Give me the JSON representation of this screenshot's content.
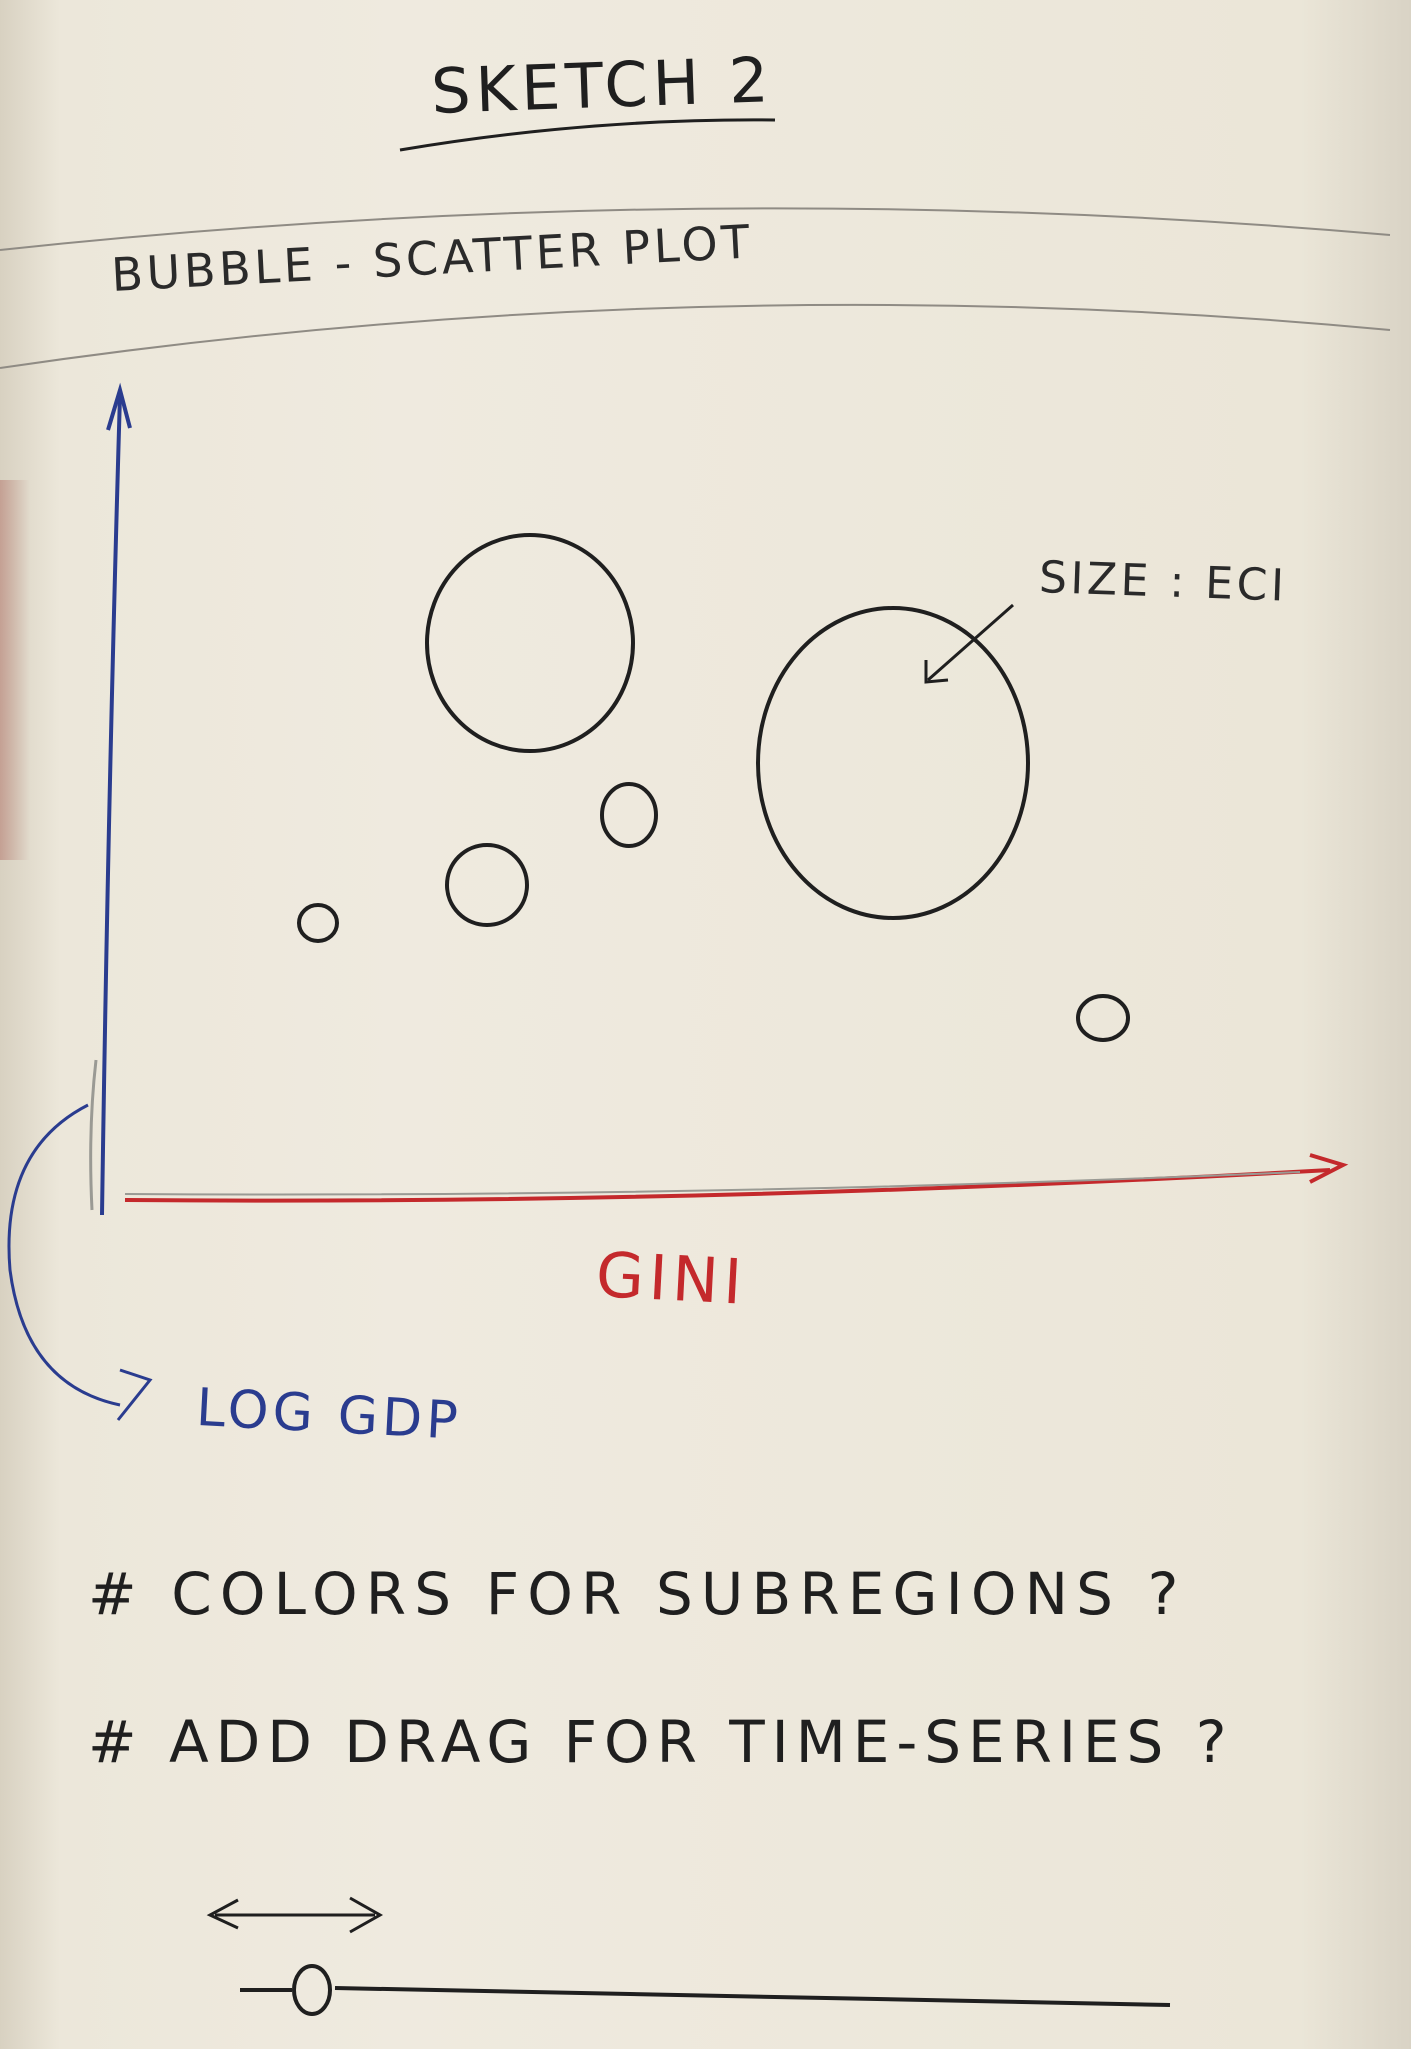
{
  "title": "SKETCH 2",
  "subtitle": "BUBBLE - SCATTER PLOT",
  "annotations": {
    "size": "SIZE : ECI"
  },
  "axes": {
    "x_label": "GINI",
    "y_label": "LOG GDP"
  },
  "notes": [
    "# COLORS FOR SUBREGIONS ?",
    "# ADD DRAG FOR TIME-SERIES ?"
  ],
  "bubble_count": 6,
  "colors": {
    "ink": "#1f1f1f",
    "x_axis": "#c4292c",
    "y_axis": "#2a3c8f",
    "paper": "#efeadf"
  }
}
